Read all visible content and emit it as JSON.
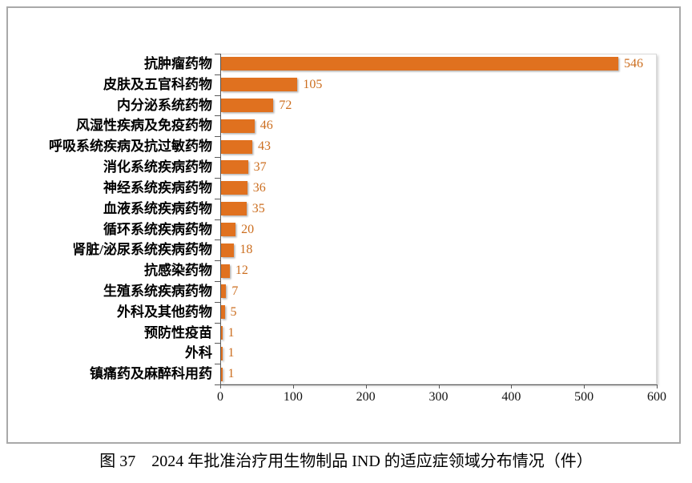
{
  "figure_caption": "图 37　2024 年批准治疗用生物制品 IND 的适应症领域分布情况（件）",
  "colors": {
    "bar": "#E0711F",
    "value_label": "#CC6E1F",
    "axis_line": "#595959",
    "plot_border": "#D9D9D9",
    "figure_border": "#A9A9A9",
    "category_label": "#000000",
    "axis_tick_label": "#111111"
  },
  "chart_data": {
    "type": "bar",
    "orientation": "horizontal",
    "title": "",
    "caption": "图 37　2024 年批准治疗用生物制品 IND 的适应症领域分布情况（件）",
    "categories": [
      "抗肿瘤药物",
      "皮肤及五官科药物",
      "内分泌系统药物",
      "风湿性疾病及免疫药物",
      "呼吸系统疾病及抗过敏药物",
      "消化系统疾病药物",
      "神经系统疾病药物",
      "血液系统疾病药物",
      "循环系统疾病药物",
      "肾脏/泌尿系统疾病药物",
      "抗感染药物",
      "生殖系统疾病药物",
      "外科及其他药物",
      "预防性疫苗",
      "外科",
      "镇痛药及麻醉科用药"
    ],
    "values": [
      546,
      105,
      72,
      46,
      43,
      37,
      36,
      35,
      20,
      18,
      12,
      7,
      5,
      1,
      1,
      1
    ],
    "xlabel": "",
    "ylabel": "",
    "xlim": [
      0,
      600
    ],
    "x_ticks": [
      0,
      100,
      200,
      300,
      400,
      500,
      600
    ],
    "grid": false,
    "legend": "none",
    "data_labels": true
  }
}
